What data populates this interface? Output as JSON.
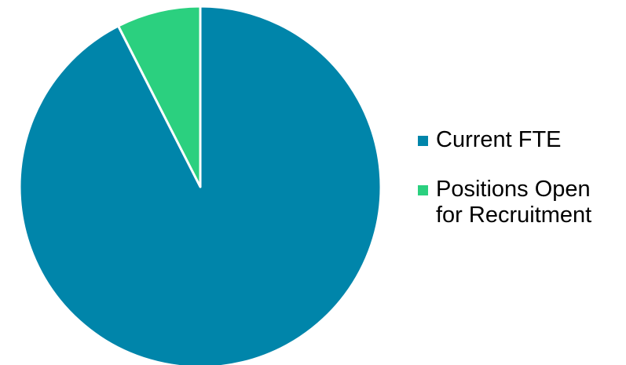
{
  "chart_data": {
    "type": "pie",
    "categories": [
      "Current FTE",
      "Positions Open for Recruitment"
    ],
    "values": [
      92.5,
      7.5
    ],
    "colors": [
      "#0085AA",
      "#2BD07F"
    ],
    "slice_border_color": "#FFFFFF",
    "start_angle": "12 o'clock",
    "direction": "clockwise",
    "legend_placement": "right",
    "legend": [
      {
        "label": "Current FTE",
        "color": "#0085AA"
      },
      {
        "label": "Positions Open for Recruitment",
        "color": "#2BD07F"
      }
    ]
  }
}
